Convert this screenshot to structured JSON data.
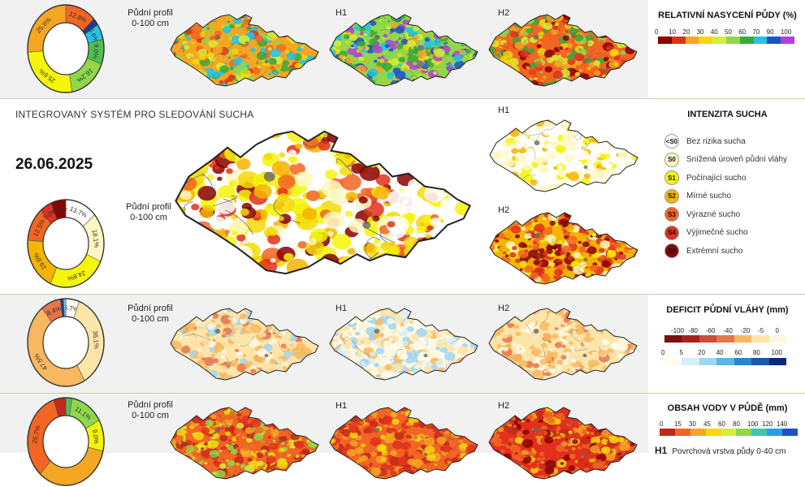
{
  "rows": [
    {
      "id": "row1",
      "profile_label": "Půdní profil\n0-100 cm",
      "h1_label": "H1",
      "h2_label": "H2",
      "donut": [
        {
          "value": 12.8,
          "color": "#f26522",
          "label": "12.8%"
        },
        {
          "value": 2.6,
          "color": "#1e3a8a",
          "label": ""
        },
        {
          "value": 5.6,
          "color": "#22c3e6",
          "label": "5.6%"
        },
        {
          "value": 9.0,
          "color": "#4fbf4f",
          "label": "9.0%"
        },
        {
          "value": 16.2,
          "color": "#8ed84a",
          "label": "16.2%"
        },
        {
          "value": 25.6,
          "color": "#f5f50a",
          "label": "25.6%"
        },
        {
          "value": 25.6,
          "color": "#f5a623",
          "label": "25.6%"
        }
      ]
    },
    {
      "id": "row2",
      "h1_label": "H1",
      "h2_label": "H2",
      "profile_label": "Půdní profil\n0-100 cm",
      "donut": [
        {
          "value": 13.7,
          "color": "#ffffff",
          "label": "13.7%"
        },
        {
          "value": 18.1,
          "color": "#fff7c2",
          "label": "18.1%"
        },
        {
          "value": 24.8,
          "color": "#f5f50a",
          "label": "24.8%"
        },
        {
          "value": 19.6,
          "color": "#f5b400",
          "label": "19.6%"
        },
        {
          "value": 12.5,
          "color": "#f26522",
          "label": "12.5%"
        },
        {
          "value": 5.0,
          "color": "#e0301e",
          "label": "5.0%"
        },
        {
          "value": 6.3,
          "color": "#8b0000",
          "label": "6.3%"
        }
      ]
    },
    {
      "id": "row3",
      "profile_label": "Půdní profil\n0-100 cm",
      "h1_label": "H1",
      "h2_label": "H2",
      "donut": [
        {
          "value": 5.7,
          "color": "#fffdf0",
          "label": "5.7%"
        },
        {
          "value": 36.1,
          "color": "#fde4a8",
          "label": "36.1%"
        },
        {
          "value": 47.5,
          "color": "#f8b860",
          "label": "47.5%"
        },
        {
          "value": 8.4,
          "color": "#e8744a",
          "label": "8.4%"
        },
        {
          "value": 1.3,
          "color": "#1e3a8a",
          "label": ""
        },
        {
          "value": 1.0,
          "color": "#6ec6f0",
          "label": ""
        }
      ]
    },
    {
      "id": "row4",
      "profile_label": "Půdní profil\n0-100 cm",
      "h1_label": "H1",
      "h2_label": "H2",
      "donut": [
        {
          "value": 2.0,
          "color": "#4fbf4f",
          "label": ""
        },
        {
          "value": 11.1,
          "color": "#8ed84a",
          "label": "11.1%"
        },
        {
          "value": 9.0,
          "color": "#f5f50a",
          "label": "9.0%"
        },
        {
          "value": 25.7,
          "color": "#f5a623",
          "label": ""
        },
        {
          "value": 25.7,
          "color": "#f26522",
          "label": "25.7%"
        },
        {
          "value": 4.0,
          "color": "#c0281c",
          "label": ""
        }
      ]
    }
  ],
  "system_title": "INTEGROVANÝ SYSTÉM PRO SLEDOVÁNÍ SUCHA",
  "date": "26.06.2025",
  "legend": {
    "saturation": {
      "title": "RELATIVNÍ NASYCENÍ PŮDY (%)",
      "ticks": [
        "0",
        "10",
        "20",
        "30",
        "40",
        "50",
        "60",
        "70",
        "90",
        "100"
      ],
      "colors": [
        "#8b0000",
        "#e0301e",
        "#f5a623",
        "#f5d90a",
        "#d4ef3a",
        "#8ed84a",
        "#3aa83a",
        "#22c3e6",
        "#1e50c8",
        "#b040d8"
      ]
    },
    "drought": {
      "title": "INTENZITA SUCHA",
      "items": [
        {
          "code": "<S0",
          "label": "Bez rizika sucha",
          "color": "#ffffff"
        },
        {
          "code": "S0",
          "label": "Snížená úroveň půdní vláhy",
          "color": "#fff7c2"
        },
        {
          "code": "S1",
          "label": "Počínající sucho",
          "color": "#f5f50a"
        },
        {
          "code": "S2",
          "label": "Mírné sucho",
          "color": "#f5b400"
        },
        {
          "code": "S3",
          "label": "Výrazné sucho",
          "color": "#f26522"
        },
        {
          "code": "S4",
          "label": "Výjimečné sucho",
          "color": "#e0301e"
        },
        {
          "code": "S5",
          "label": "Extrémní sucho",
          "color": "#8b0000"
        }
      ]
    },
    "deficit": {
      "title": "DEFICIT PŮDNÍ VLÁHY (mm)",
      "neg_ticks": [
        "-100",
        "-80",
        "-60",
        "-40",
        "-20",
        "-5",
        "0"
      ],
      "neg_colors": [
        "#7a1010",
        "#a82020",
        "#d04a3a",
        "#e8744a",
        "#f8b860",
        "#fde4a8",
        "#fff8e0"
      ],
      "pos_ticks": [
        "0",
        "5",
        "20",
        "40",
        "60",
        "80",
        "100"
      ],
      "pos_colors": [
        "#fffdf0",
        "#d6eef8",
        "#9fd6f2",
        "#5ab4e6",
        "#2a86cc",
        "#1a58a8",
        "#0a2a7a"
      ]
    },
    "water": {
      "title": "OBSAH VODY V PŮDĚ (mm)",
      "ticks": [
        "0",
        "15",
        "30",
        "45",
        "60",
        "80",
        "100",
        "120",
        "140"
      ],
      "colors": [
        "#c0281c",
        "#f26522",
        "#f5a623",
        "#f5d90a",
        "#d4ef3a",
        "#8ed84a",
        "#3ac8b0",
        "#22a3e6",
        "#1e50c8"
      ]
    },
    "footer": {
      "code": "H1",
      "text": "Povrchová vrstva půdy 0-40 cm"
    }
  },
  "colors": {
    "separator": "#b9d9a3",
    "band_gray": "#f1f1f1"
  }
}
